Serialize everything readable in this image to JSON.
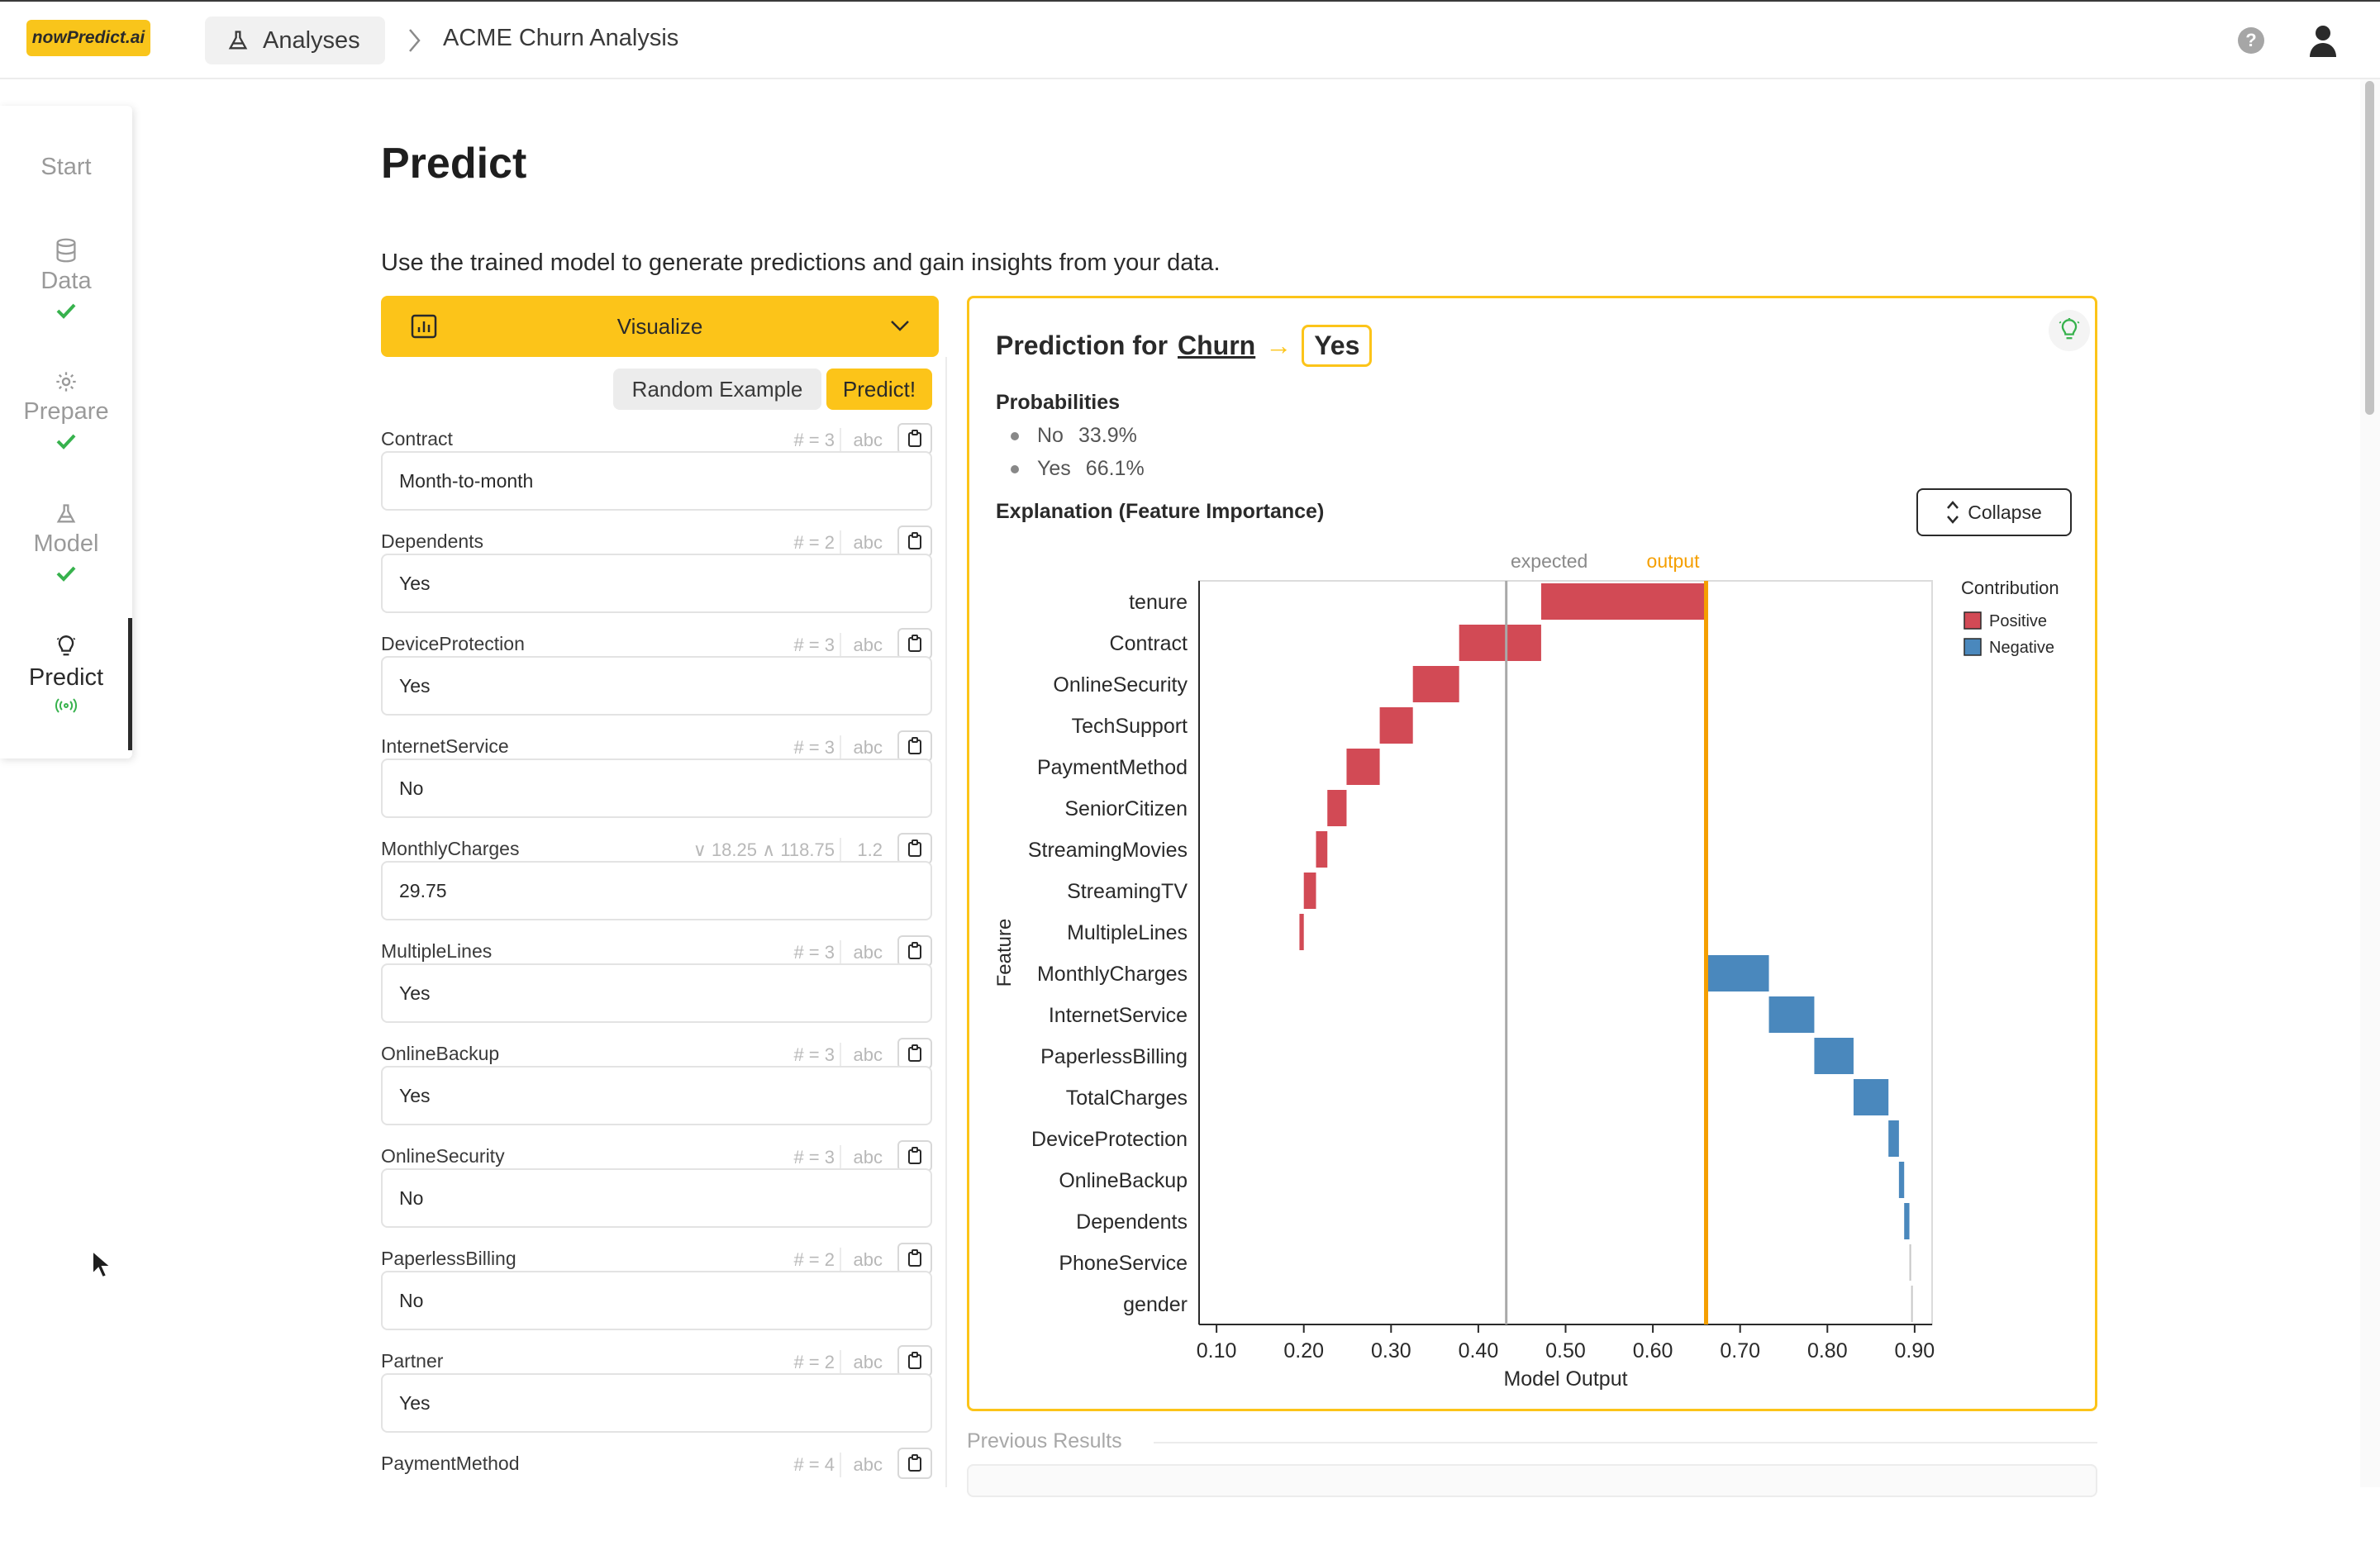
{
  "header": {
    "logo_text": "nowPredict.ai",
    "breadcrumb_root": "Analyses",
    "breadcrumb_current": "ACME Churn Analysis",
    "help_glyph": "?"
  },
  "sidebar": {
    "items": [
      {
        "label": "Start",
        "icon": "start"
      },
      {
        "label": "Data",
        "icon": "database-icon",
        "done": true
      },
      {
        "label": "Prepare",
        "icon": "gear-icon",
        "done": true
      },
      {
        "label": "Model",
        "icon": "flask-icon",
        "done": true
      },
      {
        "label": "Predict",
        "icon": "lightbulb-icon",
        "active": true
      }
    ]
  },
  "page": {
    "title": "Predict",
    "subtitle": "Use the trained model to generate predictions and gain insights from your data.",
    "visualize_label": "Visualize",
    "random_example_label": "Random Example",
    "predict_label": "Predict!"
  },
  "fields": [
    {
      "name": "Contract",
      "meta": "# = 3",
      "type": "abc",
      "value": "Month-to-month"
    },
    {
      "name": "Dependents",
      "meta": "# = 2",
      "type": "abc",
      "value": "Yes"
    },
    {
      "name": "DeviceProtection",
      "meta": "# = 3",
      "type": "abc",
      "value": "Yes"
    },
    {
      "name": "InternetService",
      "meta": "# = 3",
      "type": "abc",
      "value": "No"
    },
    {
      "name": "MonthlyCharges",
      "meta": "∨ 18.25  ∧ 118.75",
      "type": "1.2",
      "value": "29.75"
    },
    {
      "name": "MultipleLines",
      "meta": "# = 3",
      "type": "abc",
      "value": "Yes"
    },
    {
      "name": "OnlineBackup",
      "meta": "# = 3",
      "type": "abc",
      "value": "Yes"
    },
    {
      "name": "OnlineSecurity",
      "meta": "# = 3",
      "type": "abc",
      "value": "No"
    },
    {
      "name": "PaperlessBilling",
      "meta": "# = 2",
      "type": "abc",
      "value": "No"
    },
    {
      "name": "Partner",
      "meta": "# = 2",
      "type": "abc",
      "value": "Yes"
    },
    {
      "name": "PaymentMethod",
      "meta": "# = 4",
      "type": "abc",
      "value": ""
    }
  ],
  "prediction": {
    "prefix": "Prediction for",
    "target": "Churn",
    "result": "Yes",
    "probabilities_title": "Probabilities",
    "probabilities": [
      {
        "label": "No",
        "value": "33.9%"
      },
      {
        "label": "Yes",
        "value": "66.1%"
      }
    ],
    "explanation_title": "Explanation (Feature Importance)",
    "collapse_label": "Collapse"
  },
  "chart_data": {
    "type": "bar",
    "subtype": "waterfall",
    "xlabel": "Model Output",
    "ylabel": "Feature",
    "xlim": [
      0.08,
      0.92
    ],
    "xticks": [
      0.1,
      0.2,
      0.3,
      0.4,
      0.5,
      0.6,
      0.7,
      0.8,
      0.9
    ],
    "xtick_labels": [
      "0.10",
      "0.20",
      "0.30",
      "0.40",
      "0.50",
      "0.60",
      "0.70",
      "0.80",
      "0.90"
    ],
    "expected": 0.432,
    "expected_label": "expected",
    "output": 0.661,
    "output_label": "output",
    "legend_title": "Contribution",
    "legend": [
      {
        "name": "Positive",
        "color": "#d24a55"
      },
      {
        "name": "Negative",
        "color": "#4a88bd"
      }
    ],
    "bars": [
      {
        "feature": "tenure",
        "start": 0.472,
        "end": 0.661,
        "sign": "positive"
      },
      {
        "feature": "Contract",
        "start": 0.378,
        "end": 0.472,
        "sign": "positive"
      },
      {
        "feature": "OnlineSecurity",
        "start": 0.325,
        "end": 0.378,
        "sign": "positive"
      },
      {
        "feature": "TechSupport",
        "start": 0.287,
        "end": 0.325,
        "sign": "positive"
      },
      {
        "feature": "PaymentMethod",
        "start": 0.249,
        "end": 0.287,
        "sign": "positive"
      },
      {
        "feature": "SeniorCitizen",
        "start": 0.227,
        "end": 0.249,
        "sign": "positive"
      },
      {
        "feature": "StreamingMovies",
        "start": 0.214,
        "end": 0.227,
        "sign": "positive"
      },
      {
        "feature": "StreamingTV",
        "start": 0.2,
        "end": 0.214,
        "sign": "positive"
      },
      {
        "feature": "MultipleLines",
        "start": 0.195,
        "end": 0.2,
        "sign": "positive"
      },
      {
        "feature": "MonthlyCharges",
        "start": 0.661,
        "end": 0.733,
        "sign": "negative"
      },
      {
        "feature": "InternetService",
        "start": 0.733,
        "end": 0.785,
        "sign": "negative"
      },
      {
        "feature": "PaperlessBilling",
        "start": 0.785,
        "end": 0.83,
        "sign": "negative"
      },
      {
        "feature": "TotalCharges",
        "start": 0.83,
        "end": 0.87,
        "sign": "negative"
      },
      {
        "feature": "DeviceProtection",
        "start": 0.87,
        "end": 0.882,
        "sign": "negative"
      },
      {
        "feature": "OnlineBackup",
        "start": 0.882,
        "end": 0.888,
        "sign": "negative"
      },
      {
        "feature": "Dependents",
        "start": 0.888,
        "end": 0.894,
        "sign": "negative"
      },
      {
        "feature": "PhoneService",
        "start": 0.894,
        "end": 0.896,
        "sign": "neutral"
      },
      {
        "feature": "gender",
        "start": 0.896,
        "end": 0.897,
        "sign": "neutral"
      }
    ]
  },
  "previous_results": {
    "title": "Previous Results"
  },
  "colors": {
    "accent": "#fcc419",
    "check": "#37b24d",
    "positive": "#d24a55",
    "negative": "#4a88bd",
    "output_line": "#f59f00"
  }
}
